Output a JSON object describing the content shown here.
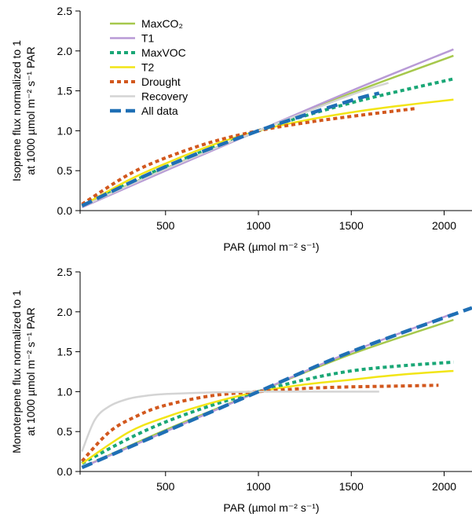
{
  "chart_data": [
    {
      "type": "line",
      "xlabel": "PAR (µmol m⁻² s⁻¹)",
      "ylabel_line1": "Isoprene flux normalized to 1",
      "ylabel_line2": "at 1000 µmol m⁻² s⁻¹ PAR",
      "xlim": [
        40,
        2150
      ],
      "ylim": [
        0,
        2.5
      ],
      "xticks": [
        500,
        1000,
        1500,
        2000
      ],
      "yticks": [
        0.0,
        0.5,
        1.0,
        1.5,
        2.0,
        2.5
      ],
      "grid": false,
      "legend_position": "top-left",
      "series": [
        {
          "name": "MaxCO2",
          "legend_label": "MaxCO₂",
          "color": "#a6c84c",
          "dash": "solid",
          "x": [
            50,
            500,
            1000,
            1500,
            2050
          ],
          "y": [
            0.05,
            0.53,
            1.0,
            1.47,
            1.94
          ]
        },
        {
          "name": "T1",
          "legend_label": "T1",
          "color": "#b89ad6",
          "dash": "solid",
          "x": [
            50,
            500,
            1000,
            1500,
            2050
          ],
          "y": [
            0.04,
            0.5,
            1.0,
            1.5,
            2.02
          ]
        },
        {
          "name": "MaxVOC",
          "legend_label": "MaxVOC",
          "color": "#1aa776",
          "dash": "dotted",
          "x": [
            50,
            500,
            1000,
            1500,
            2050
          ],
          "y": [
            0.06,
            0.55,
            1.0,
            1.35,
            1.65
          ]
        },
        {
          "name": "T2",
          "legend_label": "T2",
          "color": "#f2e516",
          "dash": "solid",
          "x": [
            50,
            300,
            500,
            750,
            1000,
            1250,
            1500,
            1750,
            2050
          ],
          "y": [
            0.06,
            0.38,
            0.59,
            0.82,
            1.0,
            1.13,
            1.23,
            1.31,
            1.39
          ]
        },
        {
          "name": "Drought",
          "legend_label": "Drought",
          "color": "#d2581e",
          "dash": "dotted",
          "x": [
            50,
            300,
            500,
            750,
            1000,
            1250,
            1500,
            1850
          ],
          "y": [
            0.08,
            0.45,
            0.66,
            0.86,
            1.0,
            1.1,
            1.18,
            1.28
          ]
        },
        {
          "name": "Recovery",
          "legend_label": "Recovery",
          "color": "#d4d4d4",
          "dash": "solid",
          "x": [
            50,
            500,
            1000,
            1500,
            1700
          ],
          "y": [
            0.05,
            0.52,
            1.0,
            1.45,
            1.6
          ]
        },
        {
          "name": "All data",
          "legend_label": "All data",
          "color": "#1f6fb5",
          "dash": "dashed",
          "x": [
            50,
            500,
            1000,
            1500,
            1650
          ],
          "y": [
            0.06,
            0.55,
            1.0,
            1.38,
            1.47
          ]
        }
      ]
    },
    {
      "type": "line",
      "xlabel": "PAR (µmol m⁻² s⁻¹)",
      "ylabel_line1": "Monoterpene flux normalized to 1",
      "ylabel_line2": "at 1000 µmol m⁻² s⁻¹ PAR",
      "xlim": [
        40,
        2150
      ],
      "ylim": [
        0,
        2.5
      ],
      "xticks": [
        500,
        1000,
        1500,
        2000
      ],
      "yticks": [
        0.0,
        0.5,
        1.0,
        1.5,
        2.0,
        2.5
      ],
      "grid": false,
      "series": [
        {
          "name": "MaxCO2",
          "color": "#a6c84c",
          "dash": "solid",
          "x": [
            50,
            500,
            1000,
            1500,
            2050
          ],
          "y": [
            0.05,
            0.52,
            1.0,
            1.47,
            1.9
          ]
        },
        {
          "name": "T1",
          "color": "#b89ad6",
          "dash": "solid",
          "x": [
            50,
            500,
            1000,
            1500,
            2050
          ],
          "y": [
            0.05,
            0.5,
            1.0,
            1.5,
            1.98
          ]
        },
        {
          "name": "MaxVOC",
          "color": "#1aa776",
          "dash": "dotted",
          "x": [
            50,
            300,
            500,
            750,
            1000,
            1250,
            1500,
            1750,
            2050
          ],
          "y": [
            0.1,
            0.41,
            0.62,
            0.83,
            1.0,
            1.15,
            1.26,
            1.32,
            1.37
          ]
        },
        {
          "name": "T2",
          "color": "#f2e516",
          "dash": "solid",
          "x": [
            50,
            300,
            500,
            750,
            1000,
            1250,
            1500,
            1750,
            2050
          ],
          "y": [
            0.1,
            0.49,
            0.68,
            0.86,
            1.0,
            1.09,
            1.15,
            1.21,
            1.26
          ]
        },
        {
          "name": "Drought",
          "color": "#d2581e",
          "dash": "dotted",
          "x": [
            50,
            200,
            350,
            500,
            750,
            1000,
            1250,
            1500,
            1750,
            1970
          ],
          "y": [
            0.13,
            0.5,
            0.7,
            0.83,
            0.95,
            1.0,
            1.04,
            1.06,
            1.07,
            1.08
          ]
        },
        {
          "name": "Recovery",
          "color": "#d4d4d4",
          "dash": "solid",
          "x": [
            50,
            120,
            200,
            300,
            400,
            500,
            750,
            1000,
            1250,
            1650
          ],
          "y": [
            0.25,
            0.65,
            0.82,
            0.91,
            0.95,
            0.97,
            0.99,
            1.0,
            1.0,
            1.0
          ]
        },
        {
          "name": "All data",
          "color": "#1f6fb5",
          "dash": "dashed",
          "x": [
            50,
            500,
            1000,
            1500,
            2150
          ],
          "y": [
            0.05,
            0.5,
            1.0,
            1.5,
            2.05
          ]
        }
      ]
    }
  ]
}
